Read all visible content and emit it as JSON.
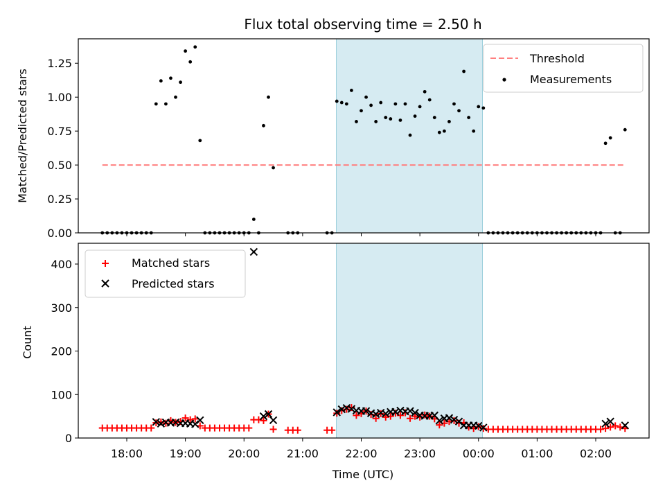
{
  "chart_data": [
    {
      "type": "scatter",
      "title": "Flux total observing time = 2.50 h",
      "xlabel": "",
      "ylabel": "Matched/Predicted stars",
      "x_axis": "time (UTC), hours after 18:00",
      "x_ticks": [
        "18:00",
        "19:00",
        "20:00",
        "21:00",
        "22:00",
        "23:00",
        "00:00",
        "01:00",
        "02:00"
      ],
      "ylim": [
        0,
        1.43
      ],
      "y_ticks": [
        "0.00",
        "0.25",
        "0.50",
        "0.75",
        "1.00",
        "1.25"
      ],
      "shaded_region": {
        "from": "21:35",
        "to": "00:05",
        "color": "#add8e6"
      },
      "legend": {
        "position": "top-right",
        "entries": [
          "Threshold",
          "Measurements"
        ]
      },
      "threshold": {
        "name": "Threshold",
        "value": 0.5,
        "from": "17:35",
        "to": "02:30",
        "color": "#ff7f7f"
      },
      "series": [
        {
          "name": "Measurements",
          "color": "#000000",
          "points": [
            [
              "17:35",
              0
            ],
            [
              "17:40",
              0
            ],
            [
              "17:45",
              0
            ],
            [
              "17:50",
              0
            ],
            [
              "17:55",
              0
            ],
            [
              "18:00",
              0
            ],
            [
              "18:05",
              0
            ],
            [
              "18:10",
              0
            ],
            [
              "18:15",
              0
            ],
            [
              "18:20",
              0
            ],
            [
              "18:25",
              0
            ],
            [
              "18:30",
              0.95
            ],
            [
              "18:35",
              1.12
            ],
            [
              "18:40",
              0.95
            ],
            [
              "18:45",
              1.14
            ],
            [
              "18:50",
              1.0
            ],
            [
              "18:55",
              1.11
            ],
            [
              "19:00",
              1.34
            ],
            [
              "19:05",
              1.26
            ],
            [
              "19:10",
              1.37
            ],
            [
              "19:15",
              0.68
            ],
            [
              "19:20",
              0
            ],
            [
              "19:25",
              0
            ],
            [
              "19:30",
              0
            ],
            [
              "19:35",
              0
            ],
            [
              "19:40",
              0
            ],
            [
              "19:45",
              0
            ],
            [
              "19:50",
              0
            ],
            [
              "19:55",
              0
            ],
            [
              "20:00",
              0
            ],
            [
              "20:05",
              0
            ],
            [
              "20:10",
              0.1
            ],
            [
              "20:15",
              0
            ],
            [
              "20:20",
              0.79
            ],
            [
              "20:25",
              1.0
            ],
            [
              "20:30",
              0.48
            ],
            [
              "20:45",
              0
            ],
            [
              "20:50",
              0
            ],
            [
              "20:55",
              0
            ],
            [
              "21:25",
              0
            ],
            [
              "21:30",
              0
            ],
            [
              "21:35",
              0.97
            ],
            [
              "21:40",
              0.96
            ],
            [
              "21:45",
              0.95
            ],
            [
              "21:50",
              1.05
            ],
            [
              "21:55",
              0.82
            ],
            [
              "22:00",
              0.9
            ],
            [
              "22:05",
              1.0
            ],
            [
              "22:10",
              0.94
            ],
            [
              "22:15",
              0.82
            ],
            [
              "22:20",
              0.96
            ],
            [
              "22:25",
              0.85
            ],
            [
              "22:30",
              0.84
            ],
            [
              "22:35",
              0.95
            ],
            [
              "22:40",
              0.83
            ],
            [
              "22:45",
              0.95
            ],
            [
              "22:50",
              0.72
            ],
            [
              "22:55",
              0.86
            ],
            [
              "23:00",
              0.93
            ],
            [
              "23:05",
              1.04
            ],
            [
              "23:10",
              0.98
            ],
            [
              "23:15",
              0.85
            ],
            [
              "23:20",
              0.74
            ],
            [
              "23:25",
              0.75
            ],
            [
              "23:30",
              0.82
            ],
            [
              "23:35",
              0.95
            ],
            [
              "23:40",
              0.9
            ],
            [
              "23:45",
              1.19
            ],
            [
              "23:50",
              0.85
            ],
            [
              "23:55",
              0.75
            ],
            [
              "00:00",
              0.93
            ],
            [
              "00:05",
              0.92
            ],
            [
              "00:10",
              0
            ],
            [
              "00:15",
              0
            ],
            [
              "00:20",
              0
            ],
            [
              "00:25",
              0
            ],
            [
              "00:30",
              0
            ],
            [
              "00:35",
              0
            ],
            [
              "00:40",
              0
            ],
            [
              "00:45",
              0
            ],
            [
              "00:50",
              0
            ],
            [
              "00:55",
              0
            ],
            [
              "01:00",
              0
            ],
            [
              "01:05",
              0
            ],
            [
              "01:10",
              0
            ],
            [
              "01:15",
              0
            ],
            [
              "01:20",
              0
            ],
            [
              "01:25",
              0
            ],
            [
              "01:30",
              0
            ],
            [
              "01:35",
              0
            ],
            [
              "01:40",
              0
            ],
            [
              "01:45",
              0
            ],
            [
              "01:50",
              0
            ],
            [
              "01:55",
              0
            ],
            [
              "02:00",
              0
            ],
            [
              "02:05",
              0
            ],
            [
              "02:10",
              0.66
            ],
            [
              "02:15",
              0.7
            ],
            [
              "02:20",
              0
            ],
            [
              "02:25",
              0
            ],
            [
              "02:30",
              0.76
            ]
          ]
        }
      ]
    },
    {
      "type": "scatter",
      "title": "",
      "xlabel": "Time (UTC)",
      "ylabel": "Count",
      "x_ticks": [
        "18:00",
        "19:00",
        "20:00",
        "21:00",
        "22:00",
        "23:00",
        "00:00",
        "01:00",
        "02:00"
      ],
      "ylim": [
        0,
        450
      ],
      "y_ticks": [
        "0",
        "100",
        "200",
        "300",
        "400"
      ],
      "shaded_region": {
        "from": "21:35",
        "to": "00:05",
        "color": "#add8e6"
      },
      "legend": {
        "position": "top-left",
        "entries": [
          "Matched stars",
          "Predicted stars"
        ]
      },
      "series": [
        {
          "name": "Matched stars",
          "marker": "plus",
          "color": "#ff0000",
          "points": [
            [
              "17:35",
              23
            ],
            [
              "17:40",
              23
            ],
            [
              "17:45",
              23
            ],
            [
              "17:50",
              23
            ],
            [
              "17:55",
              23
            ],
            [
              "18:00",
              23
            ],
            [
              "18:05",
              23
            ],
            [
              "18:10",
              23
            ],
            [
              "18:15",
              23
            ],
            [
              "18:20",
              23
            ],
            [
              "18:25",
              23
            ],
            [
              "18:30",
              35
            ],
            [
              "18:35",
              37
            ],
            [
              "18:40",
              34
            ],
            [
              "18:45",
              40
            ],
            [
              "18:50",
              36
            ],
            [
              "18:55",
              38
            ],
            [
              "19:00",
              46
            ],
            [
              "19:05",
              42
            ],
            [
              "19:10",
              44
            ],
            [
              "19:15",
              28
            ],
            [
              "19:20",
              23
            ],
            [
              "19:25",
              23
            ],
            [
              "19:30",
              23
            ],
            [
              "19:35",
              23
            ],
            [
              "19:40",
              23
            ],
            [
              "19:45",
              23
            ],
            [
              "19:50",
              23
            ],
            [
              "19:55",
              23
            ],
            [
              "20:00",
              23
            ],
            [
              "20:05",
              23
            ],
            [
              "20:10",
              42
            ],
            [
              "20:15",
              42
            ],
            [
              "20:20",
              40
            ],
            [
              "20:25",
              55
            ],
            [
              "20:30",
              20
            ],
            [
              "20:45",
              18
            ],
            [
              "20:50",
              18
            ],
            [
              "20:55",
              18
            ],
            [
              "21:25",
              18
            ],
            [
              "21:30",
              18
            ],
            [
              "21:35",
              57
            ],
            [
              "21:40",
              63
            ],
            [
              "21:45",
              66
            ],
            [
              "21:50",
              70
            ],
            [
              "21:55",
              52
            ],
            [
              "22:00",
              56
            ],
            [
              "22:05",
              62
            ],
            [
              "22:10",
              54
            ],
            [
              "22:15",
              45
            ],
            [
              "22:20",
              56
            ],
            [
              "22:25",
              48
            ],
            [
              "22:30",
              50
            ],
            [
              "22:35",
              57
            ],
            [
              "22:40",
              52
            ],
            [
              "22:45",
              58
            ],
            [
              "22:50",
              45
            ],
            [
              "22:55",
              50
            ],
            [
              "23:00",
              48
            ],
            [
              "23:05",
              53
            ],
            [
              "23:10",
              50
            ],
            [
              "23:15",
              44
            ],
            [
              "23:20",
              30
            ],
            [
              "23:25",
              34
            ],
            [
              "23:30",
              38
            ],
            [
              "23:35",
              40
            ],
            [
              "23:40",
              34
            ],
            [
              "23:45",
              35
            ],
            [
              "23:50",
              25
            ],
            [
              "23:55",
              22
            ],
            [
              "00:00",
              26
            ],
            [
              "00:05",
              22
            ],
            [
              "00:10",
              20
            ],
            [
              "00:15",
              20
            ],
            [
              "00:20",
              20
            ],
            [
              "00:25",
              20
            ],
            [
              "00:30",
              20
            ],
            [
              "00:35",
              20
            ],
            [
              "00:40",
              20
            ],
            [
              "00:45",
              20
            ],
            [
              "00:50",
              20
            ],
            [
              "00:55",
              20
            ],
            [
              "01:00",
              20
            ],
            [
              "01:05",
              20
            ],
            [
              "01:10",
              20
            ],
            [
              "01:15",
              20
            ],
            [
              "01:20",
              20
            ],
            [
              "01:25",
              20
            ],
            [
              "01:30",
              20
            ],
            [
              "01:35",
              20
            ],
            [
              "01:40",
              20
            ],
            [
              "01:45",
              20
            ],
            [
              "01:50",
              20
            ],
            [
              "01:55",
              20
            ],
            [
              "02:00",
              20
            ],
            [
              "02:05",
              20
            ],
            [
              "02:10",
              22
            ],
            [
              "02:15",
              25
            ],
            [
              "02:20",
              28
            ],
            [
              "02:25",
              25
            ],
            [
              "02:30",
              22
            ]
          ]
        },
        {
          "name": "Predicted stars",
          "marker": "x",
          "color": "#000000",
          "points": [
            [
              "18:30",
              37
            ],
            [
              "18:35",
              33
            ],
            [
              "18:40",
              36
            ],
            [
              "18:45",
              35
            ],
            [
              "18:50",
              36
            ],
            [
              "18:55",
              34
            ],
            [
              "19:00",
              34
            ],
            [
              "19:05",
              33
            ],
            [
              "19:10",
              32
            ],
            [
              "19:15",
              41
            ],
            [
              "20:10",
              428
            ],
            [
              "20:20",
              50
            ],
            [
              "20:25",
              55
            ],
            [
              "20:30",
              41
            ],
            [
              "21:35",
              59
            ],
            [
              "21:40",
              66
            ],
            [
              "21:45",
              69
            ],
            [
              "21:50",
              67
            ],
            [
              "21:55",
              63
            ],
            [
              "22:00",
              62
            ],
            [
              "22:05",
              62
            ],
            [
              "22:10",
              57
            ],
            [
              "22:15",
              55
            ],
            [
              "22:20",
              58
            ],
            [
              "22:25",
              56
            ],
            [
              "22:30",
              60
            ],
            [
              "22:35",
              60
            ],
            [
              "22:40",
              63
            ],
            [
              "22:45",
              61
            ],
            [
              "22:50",
              62
            ],
            [
              "22:55",
              58
            ],
            [
              "23:00",
              52
            ],
            [
              "23:05",
              51
            ],
            [
              "23:10",
              51
            ],
            [
              "23:15",
              52
            ],
            [
              "23:20",
              40
            ],
            [
              "23:25",
              45
            ],
            [
              "23:30",
              46
            ],
            [
              "23:35",
              42
            ],
            [
              "23:40",
              38
            ],
            [
              "23:45",
              29
            ],
            [
              "23:50",
              29
            ],
            [
              "23:55",
              29
            ],
            [
              "00:00",
              28
            ],
            [
              "00:05",
              24
            ],
            [
              "02:10",
              33
            ],
            [
              "02:15",
              38
            ],
            [
              "02:30",
              29
            ]
          ]
        }
      ]
    }
  ]
}
